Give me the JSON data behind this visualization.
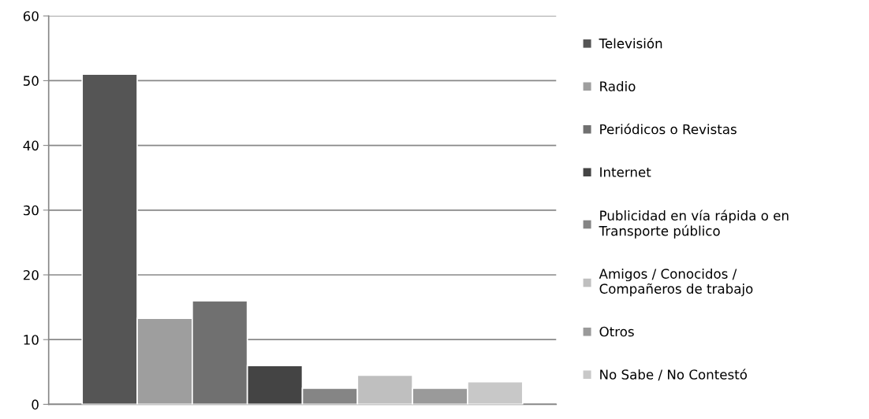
{
  "chart_data": {
    "type": "bar",
    "categories": [
      null
    ],
    "series": [
      {
        "name": "Televisión",
        "color": "#555555",
        "values": [
          51
        ]
      },
      {
        "name": "Radio",
        "color": "#9e9e9e",
        "values": [
          13.3
        ]
      },
      {
        "name": "Periódicos o Revistas",
        "color": "#707070",
        "values": [
          16
        ]
      },
      {
        "name": "Internet",
        "color": "#444444",
        "values": [
          6
        ]
      },
      {
        "name": "Publicidad en vía rápida o en Transporte público",
        "color": "#858585",
        "values": [
          2.5
        ]
      },
      {
        "name": "Amigos / Conocidos / Compañeros de trabajo",
        "color": "#bfbfbf",
        "values": [
          4.5
        ]
      },
      {
        "name": "Otros",
        "color": "#9a9a9a",
        "values": [
          2.5
        ]
      },
      {
        "name": "No Sabe / No Contestó",
        "color": "#c8c8c8",
        "values": [
          3.5
        ]
      }
    ],
    "ylim": [
      0,
      60
    ],
    "yticks": [
      0,
      10,
      20,
      30,
      40,
      50,
      60
    ],
    "grid": "y",
    "legend": "right"
  }
}
